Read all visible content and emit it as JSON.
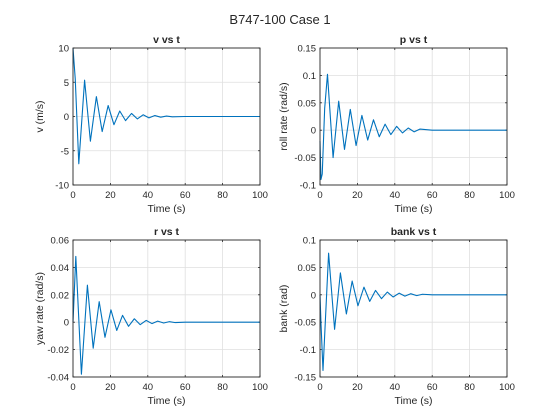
{
  "figure": {
    "title": "B747-100 Case 1",
    "line_color": "#0072BD",
    "grid_color": "#dfdfdf",
    "axis_color": "#262626"
  },
  "chart_data": [
    {
      "type": "line",
      "title": "v vs t",
      "xlabel": "Time (s)",
      "ylabel": "v (m/s)",
      "xlim": [
        0,
        100
      ],
      "ylim": [
        -10,
        10
      ],
      "xticks": [
        "0",
        "20",
        "40",
        "60",
        "80",
        "100"
      ],
      "yticks": [
        "-10",
        "-5",
        "0",
        "5",
        "10"
      ],
      "grid": true,
      "series": [
        {
          "x": [
            0,
            1.2,
            3.1,
            6.2,
            9.3,
            12.5,
            15.6,
            18.8,
            21.9,
            25.0,
            28.1,
            31.3,
            34.4,
            37.5,
            40.6,
            43.8,
            46.9,
            50.0,
            53.1,
            60,
            100
          ],
          "values": [
            10,
            5.5,
            -6.9,
            5.3,
            -3.6,
            2.9,
            -2.2,
            1.6,
            -1.2,
            0.8,
            -0.6,
            0.45,
            -0.35,
            0.25,
            -0.2,
            0.14,
            -0.1,
            0.06,
            -0.04,
            0,
            0
          ]
        }
      ]
    },
    {
      "type": "line",
      "title": "p vs t",
      "xlabel": "Time (s)",
      "ylabel": "roll rate (rad/s)",
      "xlim": [
        0,
        100
      ],
      "ylim": [
        -0.1,
        0.15
      ],
      "xticks": [
        "0",
        "20",
        "40",
        "60",
        "80",
        "100"
      ],
      "yticks": [
        "-0.1",
        "-0.05",
        "0",
        "0.05",
        "0.1",
        "0.15"
      ],
      "grid": true,
      "series": [
        {
          "x": [
            0,
            0.5,
            1.2,
            2.5,
            4.0,
            7.0,
            10.0,
            13.1,
            16.2,
            19.3,
            22.4,
            25.5,
            28.6,
            31.7,
            34.8,
            37.9,
            41.0,
            44.1,
            47.2,
            50.3,
            53.4,
            60,
            100
          ],
          "values": [
            -0.02,
            -0.09,
            -0.08,
            0.04,
            0.102,
            -0.05,
            0.053,
            -0.035,
            0.038,
            -0.028,
            0.027,
            -0.018,
            0.019,
            -0.012,
            0.011,
            -0.008,
            0.007,
            -0.005,
            0.004,
            -0.003,
            0.002,
            0,
            0
          ]
        }
      ]
    },
    {
      "type": "line",
      "title": "r vs t",
      "xlabel": "Time (s)",
      "ylabel": "yaw rate (rad/s)",
      "xlim": [
        0,
        100
      ],
      "ylim": [
        -0.04,
        0.06
      ],
      "xticks": [
        "0",
        "20",
        "40",
        "60",
        "80",
        "100"
      ],
      "yticks": [
        "-0.04",
        "-0.02",
        "0",
        "0.02",
        "0.04",
        "0.06"
      ],
      "grid": true,
      "series": [
        {
          "x": [
            0,
            1.5,
            4.5,
            7.7,
            10.8,
            14.0,
            17.1,
            20.3,
            23.4,
            26.5,
            29.7,
            32.8,
            35.9,
            39.1,
            42.2,
            45.3,
            48.5,
            51.6,
            54.7,
            60,
            100
          ],
          "values": [
            0.0,
            0.048,
            -0.038,
            0.027,
            -0.019,
            0.015,
            -0.011,
            0.009,
            -0.006,
            0.005,
            -0.003,
            0.0025,
            -0.0018,
            0.0013,
            -0.001,
            0.0008,
            -0.0006,
            0.0004,
            -0.0003,
            0,
            0
          ]
        }
      ]
    },
    {
      "type": "line",
      "title": "bank vs t",
      "xlabel": "Time (s)",
      "ylabel": "bank (rad)",
      "xlim": [
        0,
        100
      ],
      "ylim": [
        -0.15,
        0.1
      ],
      "xticks": [
        "0",
        "20",
        "40",
        "60",
        "80",
        "100"
      ],
      "yticks": [
        "-0.15",
        "-0.1",
        "-0.05",
        "0",
        "0.05",
        "0.1"
      ],
      "grid": true,
      "series": [
        {
          "x": [
            0,
            0.5,
            1.6,
            4.6,
            7.8,
            10.9,
            14.1,
            17.2,
            20.3,
            23.5,
            26.6,
            29.7,
            32.9,
            36.0,
            39.1,
            42.3,
            45.4,
            48.5,
            51.7,
            54.8,
            60,
            100
          ],
          "values": [
            0.0,
            -0.05,
            -0.138,
            0.076,
            -0.063,
            0.04,
            -0.035,
            0.025,
            -0.02,
            0.014,
            -0.012,
            0.008,
            -0.007,
            0.005,
            -0.004,
            0.003,
            -0.0025,
            0.002,
            -0.0015,
            0.001,
            0,
            0
          ]
        }
      ]
    }
  ]
}
